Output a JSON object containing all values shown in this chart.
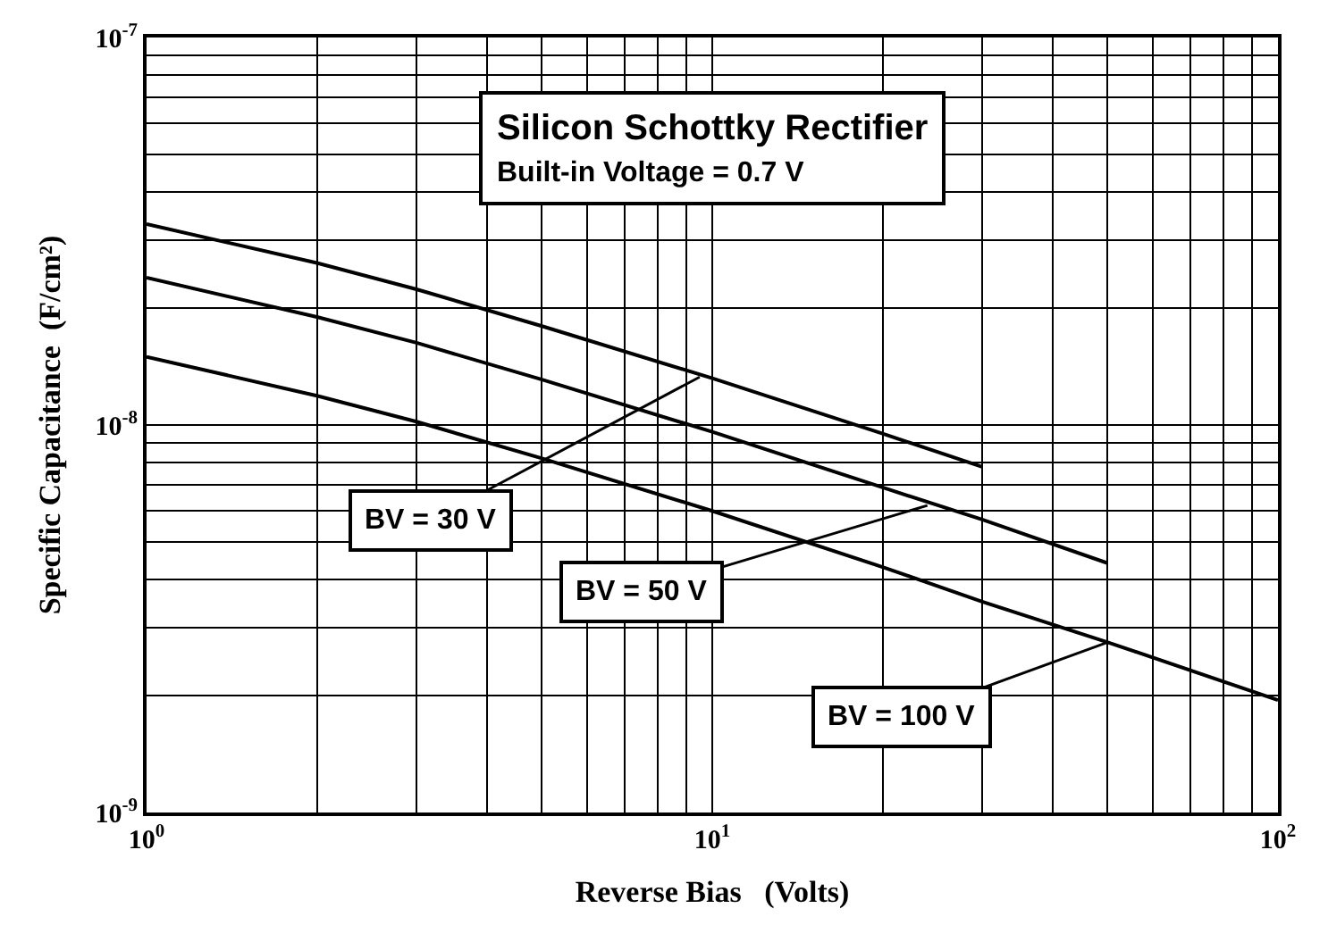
{
  "chart_data": {
    "type": "line",
    "title": "Silicon Schottky Rectifier",
    "subtitle": "Built-in Voltage = 0.7 V",
    "xlabel": "Reverse Bias   (Volts)",
    "ylabel": "Specific Capacitance  (F/cm²)",
    "log": "xy",
    "grid": true,
    "marker": "none",
    "line_style": "solid",
    "xlim": [
      1,
      100
    ],
    "ylim": [
      1e-09,
      1e-07
    ],
    "xticks": [
      {
        "value": 1,
        "label": "10$^{0}$"
      },
      {
        "value": 10,
        "label": "10$^{1}$"
      },
      {
        "value": 100,
        "label": "10$^{2}$"
      }
    ],
    "yticks": [
      {
        "value": 1e-09,
        "label": "10$^{-9}$"
      },
      {
        "value": 1e-08,
        "label": "10$^{-8}$"
      },
      {
        "value": 1e-07,
        "label": "10$^{-7}$"
      }
    ],
    "series": [
      {
        "color": "#000000",
        "x": [
          1,
          2,
          3,
          5,
          10,
          20,
          30
        ],
        "values": [
          3.3e-08,
          2.62e-08,
          2.24e-08,
          1.8e-08,
          1.32e-08,
          9.5e-09,
          7.8e-09
        ]
      },
      {
        "color": "#000000",
        "x": [
          1,
          2,
          3,
          5,
          10,
          20,
          30,
          50
        ],
        "values": [
          2.4e-08,
          1.9e-08,
          1.63e-08,
          1.31e-08,
          9.6e-09,
          6.9e-09,
          5.7e-09,
          4.4e-09
        ]
      },
      {
        "color": "#000000",
        "x": [
          1,
          2,
          3,
          5,
          10,
          20,
          30,
          50,
          100
        ],
        "values": [
          1.5e-08,
          1.19e-08,
          1.02e-08,
          8.2e-09,
          6e-09,
          4.3e-09,
          3.5e-09,
          2.75e-09,
          1.95e-09
        ]
      }
    ],
    "annotations": [
      {
        "text": "BV = 30 V",
        "x": 9.5,
        "y": 1.33e-08
      },
      {
        "text": "BV = 50 V",
        "x": 24,
        "y": 6.2e-09
      },
      {
        "text": "BV = 100 V",
        "x": 50,
        "y": 2.75e-09
      }
    ]
  }
}
